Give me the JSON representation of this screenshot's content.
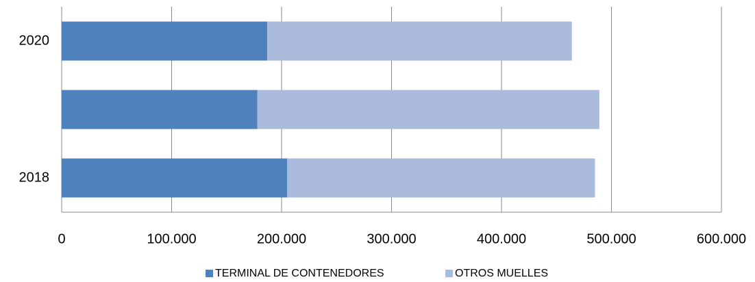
{
  "chart_data": {
    "type": "stacked_barh",
    "categories": [
      "2018",
      null,
      "2020"
    ],
    "series": [
      {
        "name": "TERMINAL DE CONTENEDORES",
        "color": "#4f81bd",
        "values": [
          205000,
          178000,
          187000
        ]
      },
      {
        "name": "OTROS MUELLES",
        "color": "#abbbdb",
        "values": [
          280000,
          311000,
          277000
        ]
      }
    ],
    "xlim": [
      0,
      600000
    ],
    "xticks": [
      0,
      {
        "value": 100000,
        "label": "100.000"
      },
      {
        "value": 200000,
        "label": "200.000"
      },
      {
        "value": 300000,
        "label": "300.000"
      },
      {
        "value": 400000,
        "label": "400.000"
      },
      {
        "value": 500000,
        "label": "500.000"
      },
      {
        "value": 600000,
        "label": "600.000"
      }
    ],
    "grid": true,
    "legend": "bottom"
  }
}
